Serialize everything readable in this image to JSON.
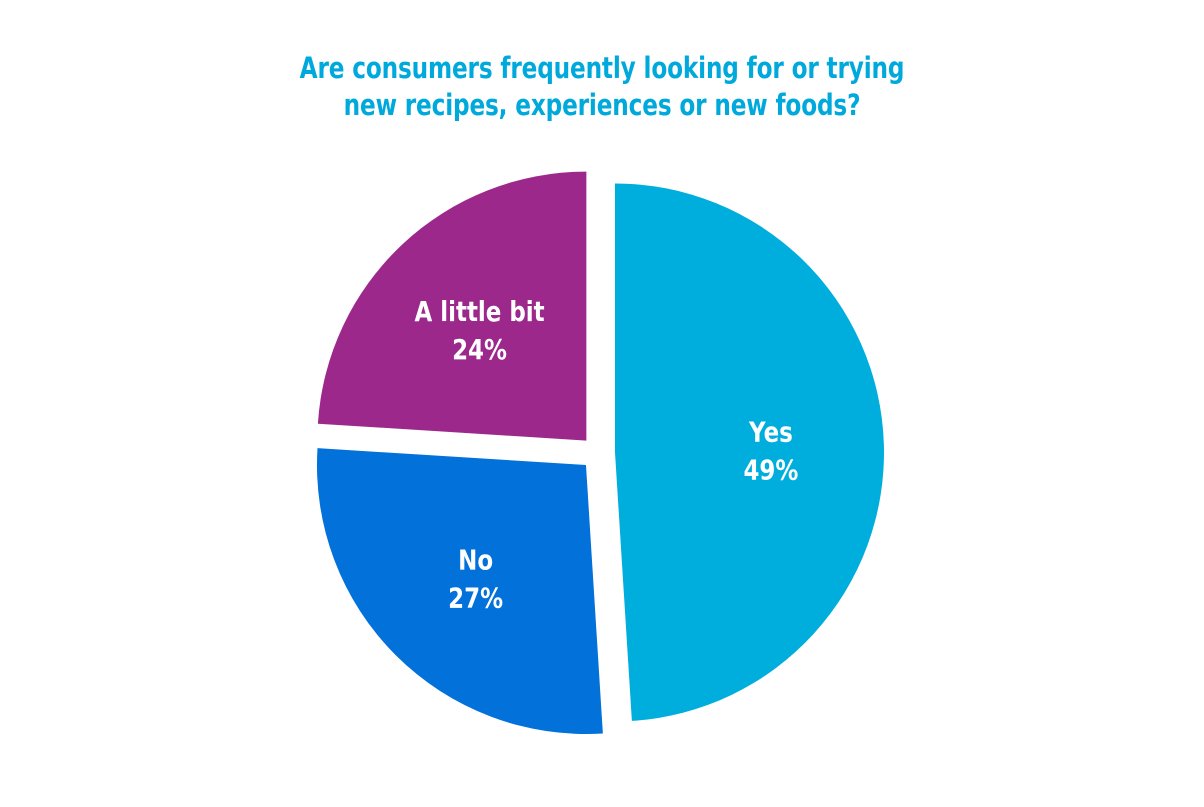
{
  "chart_data": {
    "type": "pie",
    "title_lines": [
      "Are consumers frequently looking for or trying",
      "new recipes, experiences or new foods?"
    ],
    "slices": [
      {
        "name": "Yes",
        "value": 49,
        "label": "49%",
        "color": "#00aede"
      },
      {
        "name": "No",
        "value": 27,
        "label": "27%",
        "color": "#0271d9"
      },
      {
        "name": "A little bit",
        "value": 24,
        "label": "24%",
        "color": "#9c288c"
      }
    ]
  }
}
